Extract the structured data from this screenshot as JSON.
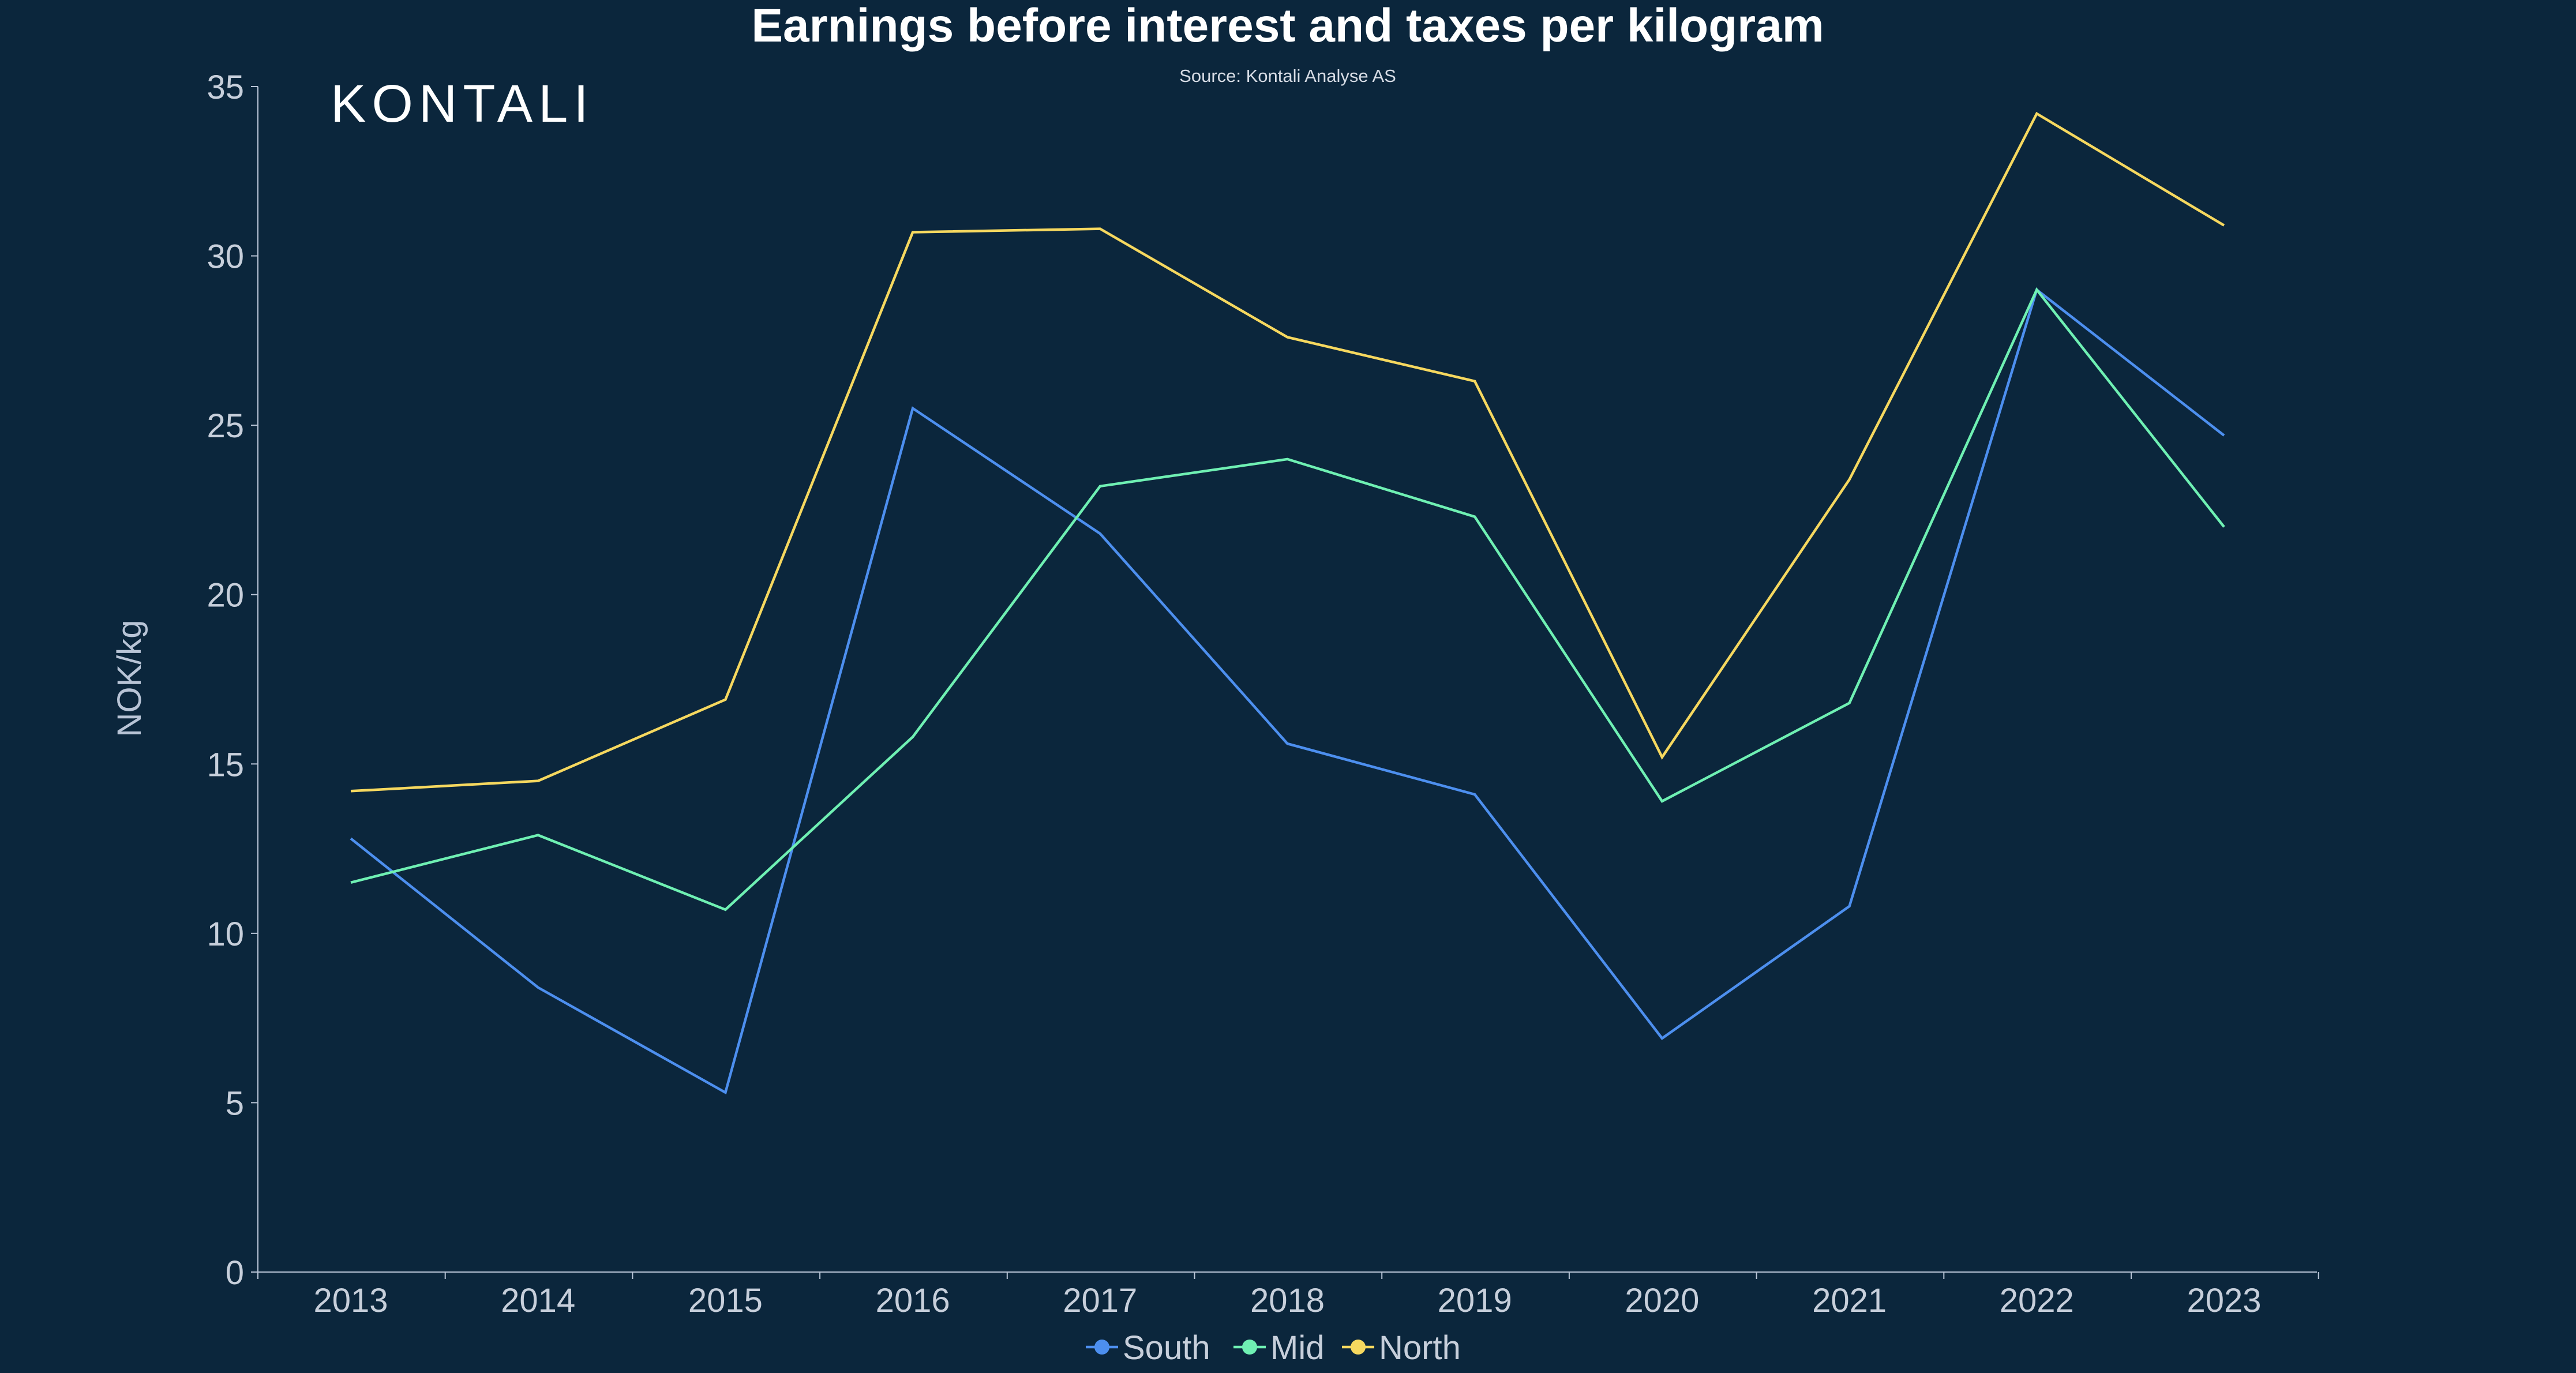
{
  "chart_data": {
    "type": "line",
    "title": "Earnings before interest and taxes per kilogram",
    "subtitle": "Source: Kontali Analyse AS",
    "logo_text": "KONTALI",
    "xlabel": "",
    "ylabel": "NOK/kg",
    "categories": [
      "2013",
      "2014",
      "2015",
      "2016",
      "2017",
      "2018",
      "2019",
      "2020",
      "2021",
      "2022",
      "2023"
    ],
    "ylim": [
      0,
      35
    ],
    "yticks": [
      0,
      5,
      10,
      15,
      20,
      25,
      30,
      35
    ],
    "grid": false,
    "legend_position": "bottom-center",
    "series": [
      {
        "name": "South",
        "color": "#4d8fef",
        "values": [
          12.8,
          8.4,
          5.3,
          25.5,
          21.8,
          15.6,
          14.1,
          6.9,
          10.8,
          29.0,
          24.7
        ]
      },
      {
        "name": "Mid",
        "color": "#6ff0b3",
        "values": [
          11.5,
          12.9,
          10.7,
          15.8,
          23.2,
          24.0,
          22.3,
          13.9,
          16.8,
          29.0,
          22.0
        ]
      },
      {
        "name": "North",
        "color": "#f6d85f",
        "values": [
          14.2,
          14.5,
          16.9,
          30.7,
          30.8,
          27.6,
          26.3,
          15.2,
          23.4,
          34.2,
          30.9
        ]
      }
    ]
  },
  "colors": {
    "background": "#0b263c",
    "title": "#ffffff",
    "axis": "#b8c4d6",
    "tick_label": "#c7cfdb"
  }
}
